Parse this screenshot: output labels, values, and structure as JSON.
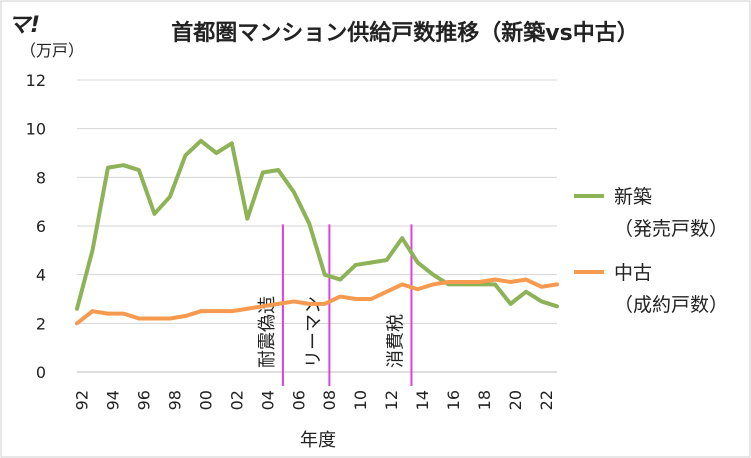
{
  "logo_text": "マ!",
  "chart_data": {
    "type": "line",
    "title": "首都圏マンション供給戸数推移（新築vs中古）",
    "ylabel": "（万戸）",
    "xlabel": "年度",
    "ylim": [
      0,
      12
    ],
    "yticks": [
      0,
      2,
      4,
      6,
      8,
      10,
      12
    ],
    "xlim": [
      1992,
      2023
    ],
    "xticks": [
      1992,
      1994,
      1996,
      1998,
      2000,
      2002,
      2004,
      2006,
      2008,
      2010,
      2012,
      2014,
      2016,
      2018,
      2020,
      2022
    ],
    "xtick_labels": [
      "92",
      "94",
      "96",
      "98",
      "00",
      "02",
      "04",
      "06",
      "08",
      "10",
      "12",
      "14",
      "16",
      "18",
      "20",
      "22"
    ],
    "grid": "horizontal",
    "series": [
      {
        "name": "新築（発売戸数）",
        "legend_lines": [
          "新築",
          "（発売戸数）"
        ],
        "color": "#8db356",
        "x": [
          1992,
          1993,
          1994,
          1995,
          1996,
          1997,
          1998,
          1999,
          2000,
          2001,
          2002,
          2003,
          2004,
          2005,
          2006,
          2007,
          2008,
          2009,
          2010,
          2011,
          2012,
          2013,
          2014,
          2015,
          2016,
          2017,
          2018,
          2019,
          2020,
          2021,
          2022,
          2023
        ],
        "values": [
          2.6,
          5.0,
          8.4,
          8.5,
          8.3,
          6.5,
          7.2,
          8.9,
          9.5,
          9.0,
          9.4,
          6.3,
          8.2,
          8.3,
          7.4,
          6.1,
          4.0,
          3.8,
          4.4,
          4.5,
          4.6,
          5.5,
          4.5,
          4.0,
          3.6,
          3.6,
          3.6,
          3.6,
          2.8,
          3.3,
          2.9,
          2.7
        ]
      },
      {
        "name": "中古（成約戸数）",
        "legend_lines": [
          "中古",
          "（成約戸数）"
        ],
        "color": "#f59a4e",
        "x": [
          1992,
          1993,
          1994,
          1995,
          1996,
          1997,
          1998,
          1999,
          2000,
          2001,
          2002,
          2003,
          2004,
          2005,
          2006,
          2007,
          2008,
          2009,
          2010,
          2011,
          2012,
          2013,
          2014,
          2015,
          2016,
          2017,
          2018,
          2019,
          2020,
          2021,
          2022,
          2023
        ],
        "values": [
          2.0,
          2.5,
          2.4,
          2.4,
          2.2,
          2.2,
          2.2,
          2.3,
          2.5,
          2.5,
          2.5,
          2.6,
          2.7,
          2.8,
          2.9,
          2.8,
          2.8,
          3.1,
          3.0,
          3.0,
          3.3,
          3.6,
          3.4,
          3.6,
          3.7,
          3.7,
          3.7,
          3.8,
          3.7,
          3.8,
          3.5,
          3.6
        ]
      }
    ],
    "annotations": [
      {
        "label": "耐震偽造",
        "x": 2005.3
      },
      {
        "label": "リーマン",
        "x": 2008.3
      },
      {
        "label": "消費税",
        "x": 2013.6
      }
    ],
    "annotation_color": "#e040e0"
  }
}
